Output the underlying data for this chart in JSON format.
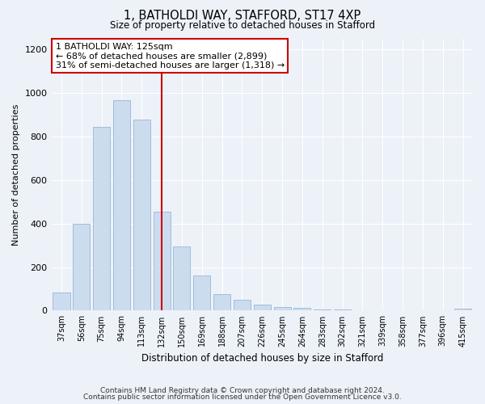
{
  "title1": "1, BATHOLDI WAY, STAFFORD, ST17 4XP",
  "title2": "Size of property relative to detached houses in Stafford",
  "xlabel": "Distribution of detached houses by size in Stafford",
  "ylabel": "Number of detached properties",
  "categories": [
    "37sqm",
    "56sqm",
    "75sqm",
    "94sqm",
    "113sqm",
    "132sqm",
    "150sqm",
    "169sqm",
    "188sqm",
    "207sqm",
    "226sqm",
    "245sqm",
    "264sqm",
    "283sqm",
    "302sqm",
    "321sqm",
    "339sqm",
    "358sqm",
    "377sqm",
    "396sqm",
    "415sqm"
  ],
  "values": [
    85,
    398,
    843,
    968,
    878,
    453,
    295,
    160,
    75,
    50,
    28,
    18,
    12,
    5,
    4,
    3,
    2,
    0,
    0,
    0,
    10
  ],
  "bar_color": "#ccdcef",
  "bar_edge_color": "#9ab5d5",
  "vline_x": 5,
  "vline_color": "#cc0000",
  "annotation_text": "1 BATHOLDI WAY: 125sqm\n← 68% of detached houses are smaller (2,899)\n31% of semi-detached houses are larger (1,318) →",
  "annotation_box_color": "white",
  "annotation_box_edge": "#cc0000",
  "ylim": [
    0,
    1250
  ],
  "yticks": [
    0,
    200,
    400,
    600,
    800,
    1000,
    1200
  ],
  "footnote1": "Contains HM Land Registry data © Crown copyright and database right 2024.",
  "footnote2": "Contains public sector information licensed under the Open Government Licence v3.0.",
  "bg_color": "#edf2f9"
}
